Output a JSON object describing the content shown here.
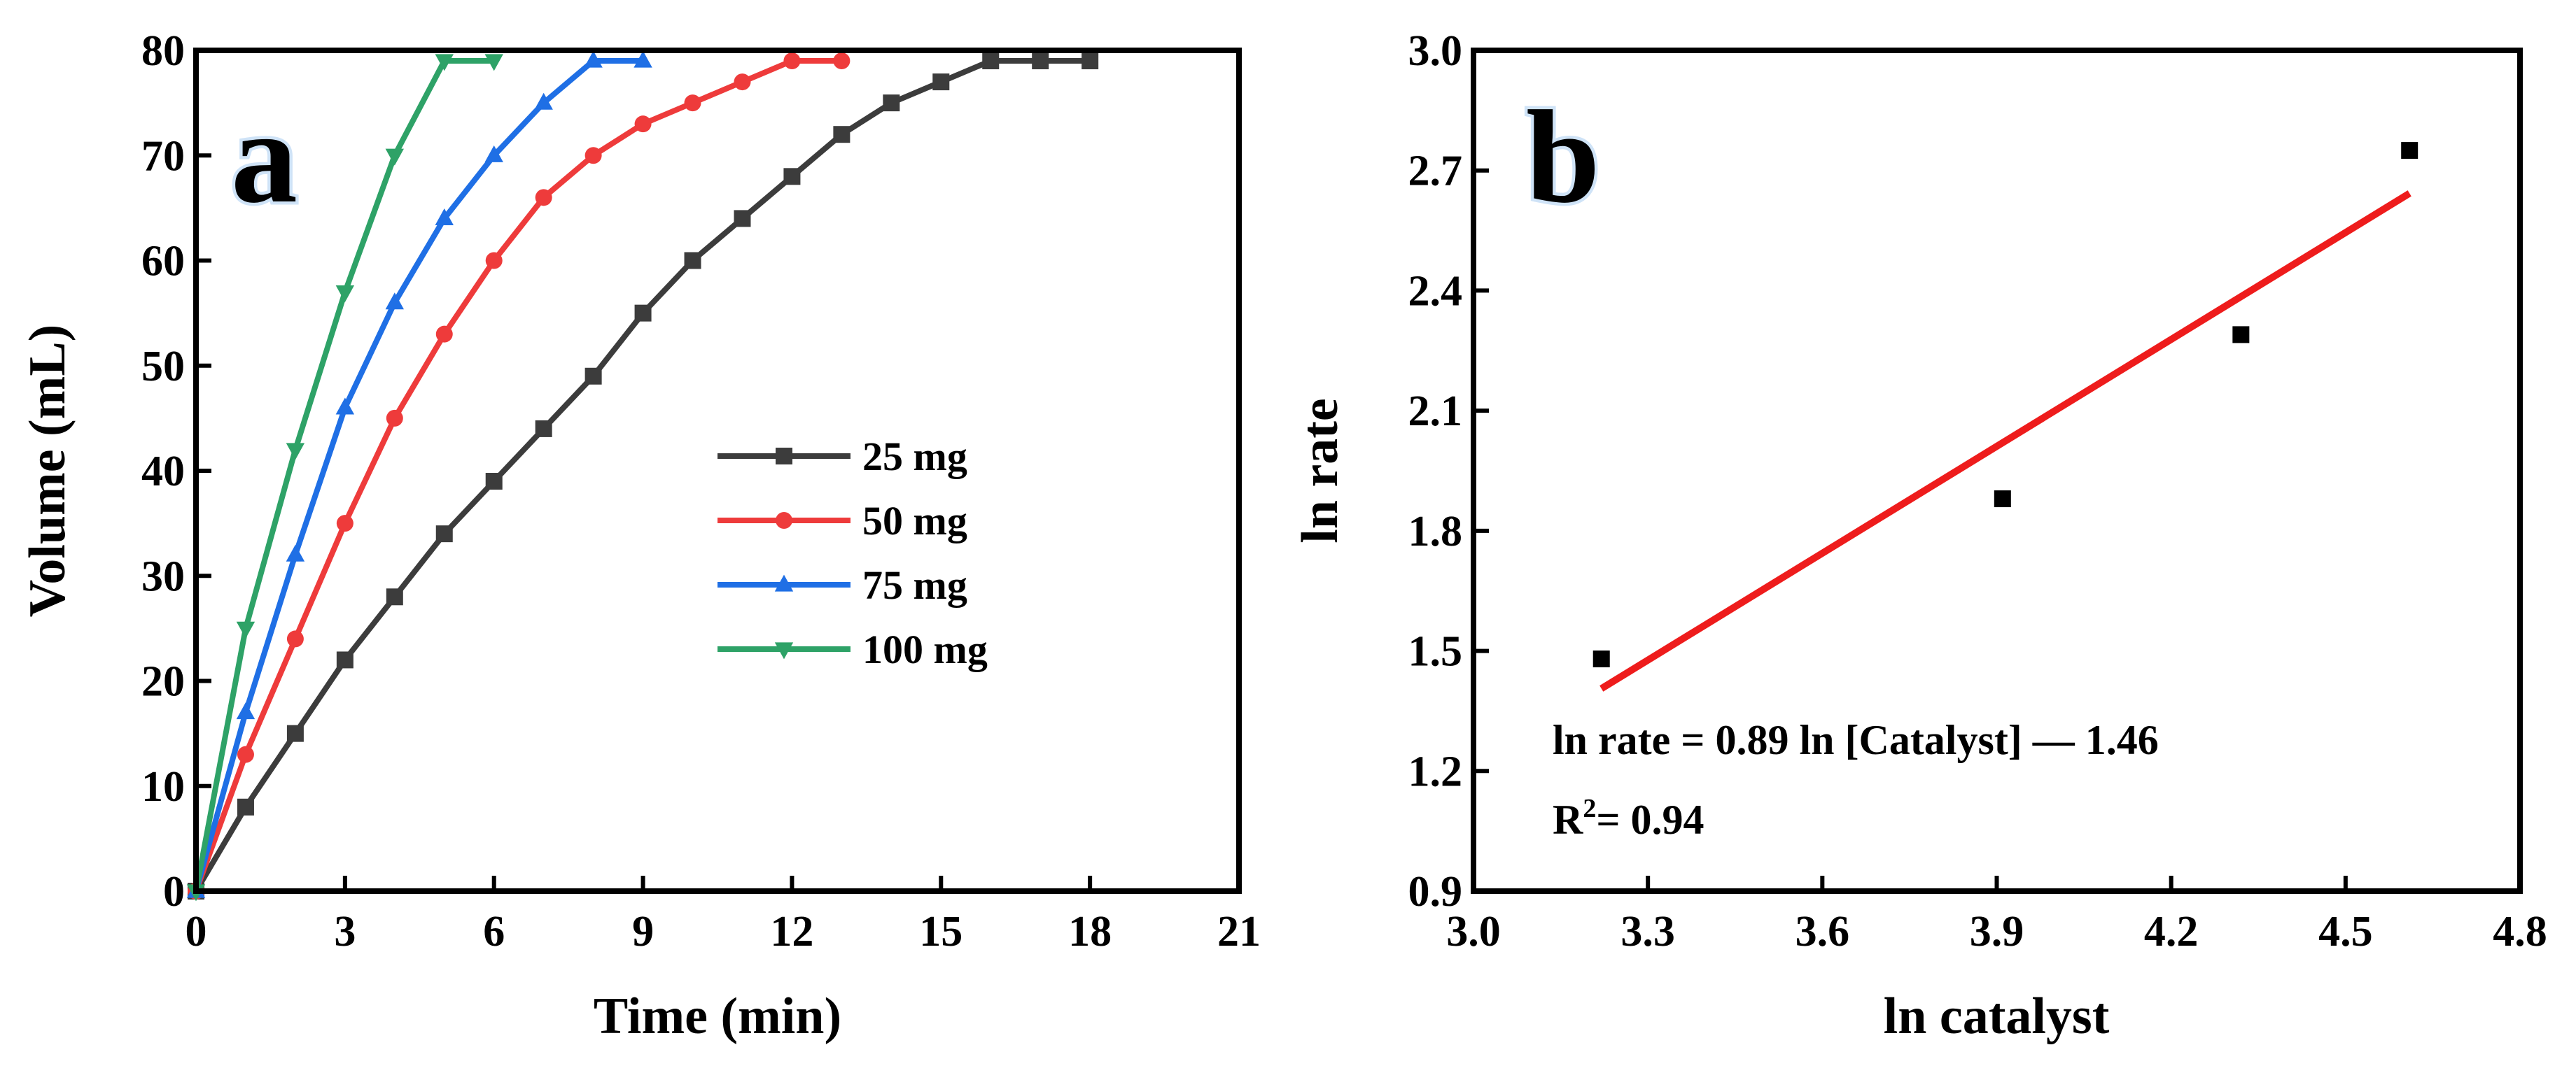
{
  "chart_data": [
    {
      "type": "line",
      "panel_label": "a",
      "title": "",
      "xlabel": "Time (min)",
      "ylabel": "Volume (mL)",
      "xlim": [
        0,
        21
      ],
      "ylim": [
        0,
        80
      ],
      "xticks": [
        0,
        3,
        6,
        9,
        12,
        15,
        18,
        21
      ],
      "yticks": [
        0,
        10,
        20,
        30,
        40,
        50,
        60,
        70,
        80
      ],
      "legend_position": "center-right",
      "grid": false,
      "series": [
        {
          "name": "25 mg",
          "color": "#3c3c3c",
          "marker": "square",
          "x": [
            0,
            1,
            2,
            3,
            4,
            5,
            6,
            7,
            8,
            9,
            10,
            11,
            12,
            13,
            14,
            15,
            16,
            17,
            18
          ],
          "y": [
            0,
            8,
            15,
            22,
            28,
            34,
            39,
            44,
            49,
            55,
            60,
            64,
            68,
            72,
            75,
            77,
            79,
            79,
            79
          ]
        },
        {
          "name": "50 mg",
          "color": "#ee3b3b",
          "marker": "circle",
          "x": [
            0,
            1,
            2,
            3,
            4,
            5,
            6,
            7,
            8,
            9,
            10,
            11,
            12,
            13
          ],
          "y": [
            0,
            13,
            24,
            35,
            45,
            53,
            60,
            66,
            70,
            73,
            75,
            77,
            79,
            79
          ]
        },
        {
          "name": "75 mg",
          "color": "#1f6fe5",
          "marker": "triangle-up",
          "x": [
            0,
            1,
            2,
            3,
            4,
            5,
            6,
            7,
            8,
            9
          ],
          "y": [
            0,
            17,
            32,
            46,
            56,
            64,
            70,
            75,
            79,
            79
          ]
        },
        {
          "name": "100 mg",
          "color": "#2ea267",
          "marker": "triangle-down",
          "x": [
            0,
            1,
            2,
            3,
            4,
            5,
            6
          ],
          "y": [
            0,
            25,
            42,
            57,
            70,
            79,
            79
          ]
        }
      ]
    },
    {
      "type": "scatter",
      "panel_label": "b",
      "title": "",
      "xlabel": "ln catalyst",
      "ylabel": "ln rate",
      "xlim": [
        3.0,
        4.8
      ],
      "ylim": [
        0.9,
        3.0
      ],
      "xticks": [
        "3.0",
        "3.3",
        "3.6",
        "3.9",
        "4.2",
        "4.5",
        "4.8"
      ],
      "yticks": [
        "0.9",
        "1.2",
        "1.5",
        "1.8",
        "2.1",
        "2.4",
        "2.7",
        "3.0"
      ],
      "grid": false,
      "points": {
        "color": "#000000",
        "marker": "square",
        "x": [
          3.22,
          3.91,
          4.32,
          4.61
        ],
        "y": [
          1.48,
          1.88,
          2.29,
          2.75
        ]
      },
      "fit": {
        "color": "#ee1c1c",
        "slope": 0.89,
        "intercept": -1.46,
        "x_range": [
          3.22,
          4.61
        ]
      },
      "annotations": {
        "equation": "ln rate = 0.89 ln [Catalyst] — 1.46",
        "r2_prefix": "R",
        "r2_sup": "2",
        "r2_value": "= 0.94"
      }
    }
  ]
}
